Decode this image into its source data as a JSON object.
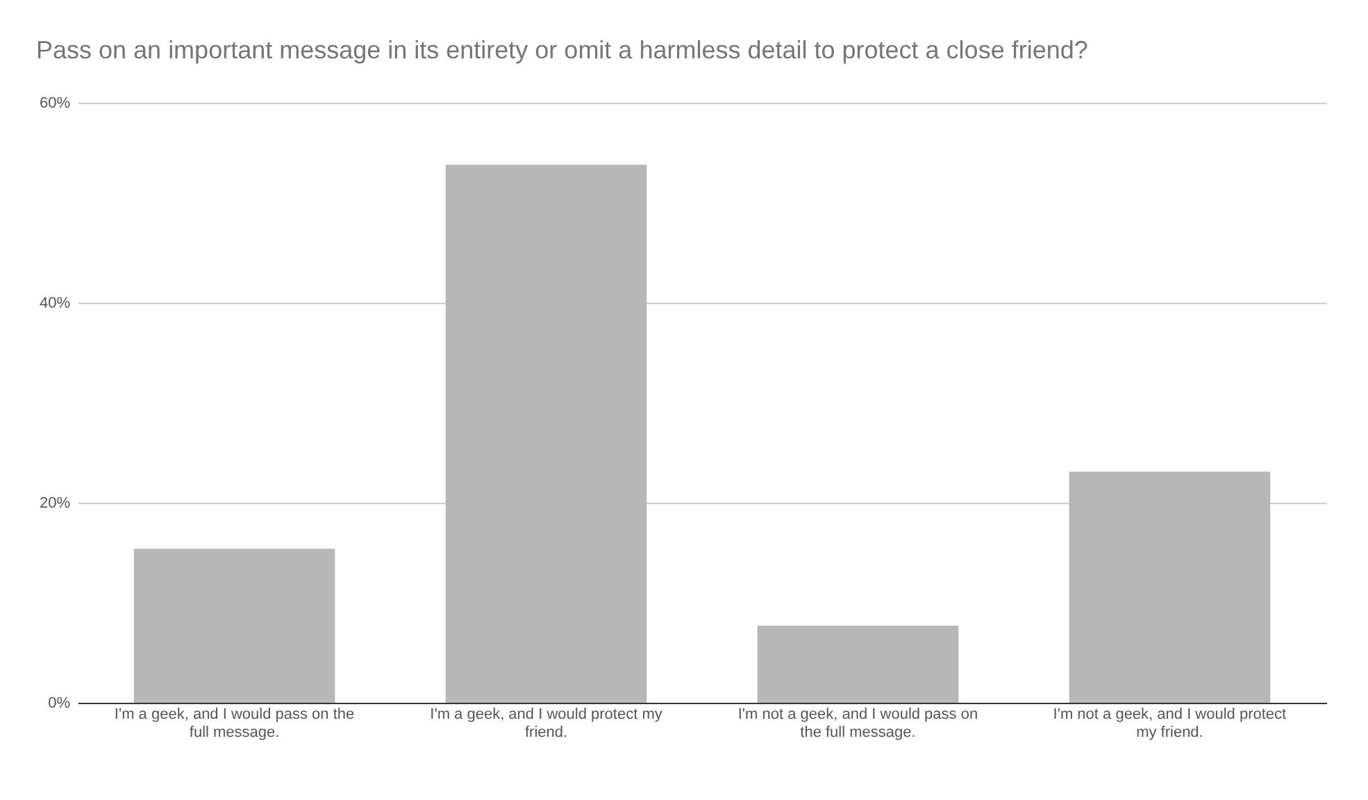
{
  "chart_data": {
    "type": "bar",
    "title": "Pass on an important message in its entirety or omit a harmless detail to protect a close friend?",
    "categories": [
      "I'm a geek, and I would pass on the full message.",
      "I'm a geek, and I would protect my friend.",
      "I'm not a geek, and I would pass on the full message.",
      "I'm not a geek, and I would protect my friend."
    ],
    "values": [
      15.4,
      53.8,
      7.7,
      23.1
    ],
    "color": "#b7b7b7",
    "ylim": [
      0,
      60
    ],
    "yticks": [
      {
        "value": 0,
        "label": "0%"
      },
      {
        "value": 20,
        "label": "20%"
      },
      {
        "value": 40,
        "label": "40%"
      },
      {
        "value": 60,
        "label": "60%"
      }
    ],
    "grid": "y"
  }
}
